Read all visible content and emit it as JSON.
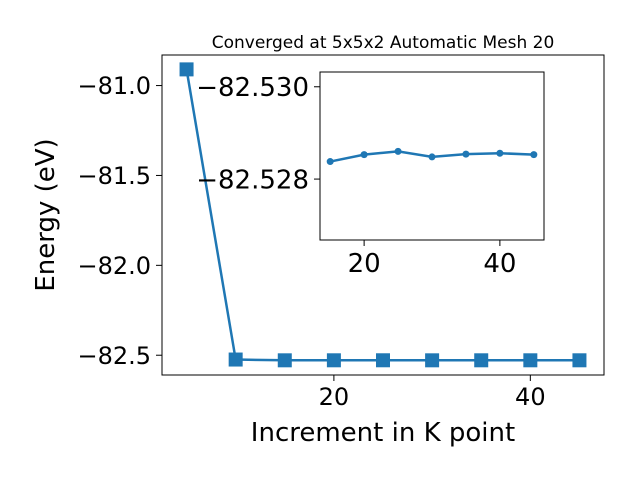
{
  "chart_data": [
    {
      "type": "line",
      "title": "Converged at 5x5x2 Automatic Mesh 20",
      "xlabel": "Increment in K point",
      "ylabel": "Energy (eV)",
      "xlim": [
        2.5,
        47.5
      ],
      "ylim": [
        -82.61,
        -80.83
      ],
      "xticks": [
        20,
        40
      ],
      "xtick_labels": [
        "20",
        "40"
      ],
      "yticks": [
        -81.0,
        -81.5,
        -82.0,
        -82.5
      ],
      "ytick_labels": [
        "−81.0",
        "−81.5",
        "−82.0",
        "−82.5"
      ],
      "marker": "square",
      "color": "#1f77b4",
      "series": [
        {
          "x": [
            5,
            10,
            15,
            20,
            25,
            30,
            35,
            40,
            45
          ],
          "y": [
            -80.91,
            -82.524,
            -82.5283,
            -82.5282,
            -82.5281,
            -82.5283,
            -82.5282,
            -82.5282,
            -82.5282
          ]
        }
      ]
    },
    {
      "type": "line",
      "inset": true,
      "xlim": [
        13.5,
        46.5
      ],
      "ylim": [
        -82.52668,
        -82.53032
      ],
      "xticks": [
        20,
        40
      ],
      "xtick_labels": [
        "20",
        "40"
      ],
      "yticks": [
        -82.53,
        -82.528
      ],
      "ytick_labels": [
        "−82.530",
        "−82.528"
      ],
      "marker": "circle",
      "color": "#1f77b4",
      "series": [
        {
          "x": [
            15,
            20,
            25,
            30,
            35,
            40,
            45
          ],
          "y": [
            -82.52838,
            -82.52853,
            -82.5286,
            -82.52848,
            -82.52854,
            -82.52856,
            -82.52853
          ]
        }
      ]
    }
  ]
}
